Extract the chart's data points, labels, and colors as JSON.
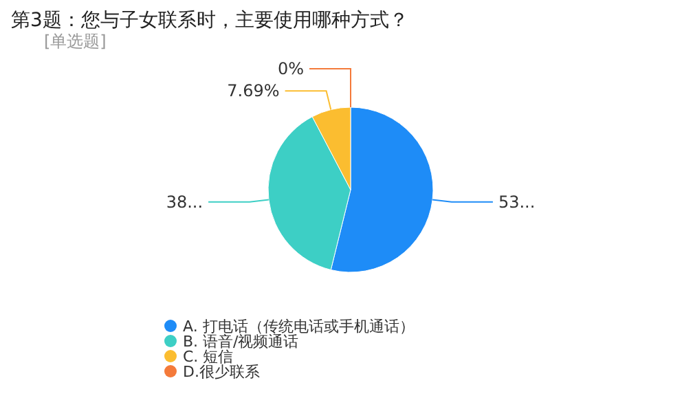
{
  "chart_data": {
    "type": "pie",
    "title": "第3题：您与子女联系时，主要使用哪种方式？",
    "subtitle": "[单选题]",
    "categories": [
      "A. 打电话（传统电话或手机通话）",
      "B. 语音/视频通话",
      "C. 短信",
      "D.很少联系"
    ],
    "values": [
      53.85,
      38.46,
      7.69,
      0
    ],
    "colors": [
      "#1e8cf7",
      "#3dcfc5",
      "#fbbd30",
      "#f47a3a"
    ],
    "value_labels": [
      "53...",
      "38...",
      "7.69%",
      "0%"
    ],
    "legend": "bottom"
  }
}
